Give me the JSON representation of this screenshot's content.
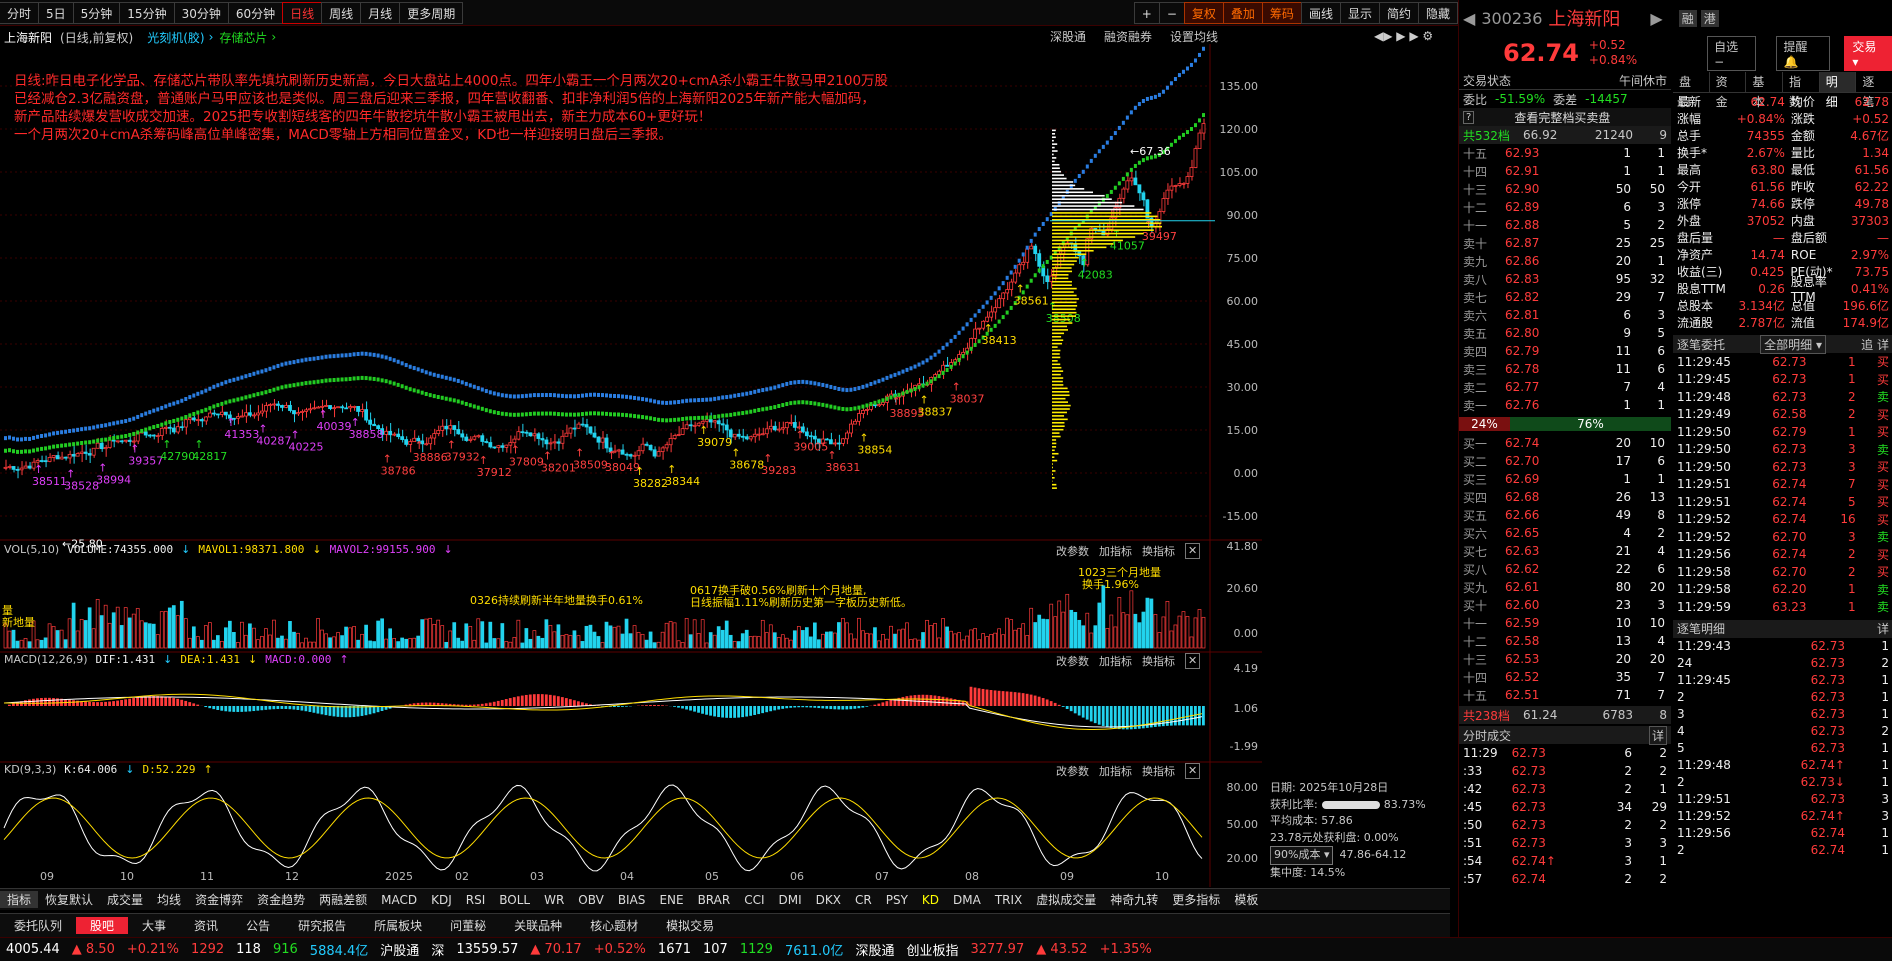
{
  "toolbar": {
    "periods": [
      "分时",
      "5日",
      "5分钟",
      "15分钟",
      "30分钟",
      "60分钟",
      "日线",
      "周线",
      "月线",
      "更多周期"
    ],
    "active": "日线",
    "tools": [
      "+",
      "−",
      "复权",
      "叠加",
      "筹码",
      "画线",
      "显示",
      "简约",
      "隐藏"
    ]
  },
  "chart_header": {
    "stock": "上海新阳",
    "mode": "(日线,前复权)",
    "concept1": "光刻机(胶)",
    "concept2": "存储芯片",
    "links": [
      "深股通",
      "融资融券",
      "设置均线"
    ]
  },
  "note": {
    "lines": [
      "日线:昨日电子化学品、存储芯片带队率先填坑刷新历史新高，今日大盘站上4000点。四年小霸王一个月两次20+cmA杀小霸王牛散马甲2100万股",
      "已经减仓2.3亿融资盘，普通账户马甲应该也是类似。周三盘后迎来三季报，四年营收翻番、扣非净利润5倍的上海新阳2025年新产能大幅加码，",
      "新产品陆续爆发营收成交加速。2025把专收割短线客的四年牛散挖坑牛散小霸王被甩出去，新主力成本60+更好玩！",
      "一个月两次20+cmA杀筹码峰高位单峰密集，MACD零轴上方相同位置金叉，KD也一样迎接明日盘后三季报。"
    ]
  },
  "price_axis": [
    "135.00",
    "120.00",
    "105.00",
    "90.00",
    "75.00",
    "60.00",
    "45.00",
    "30.00",
    "15.00",
    "0.00",
    "-15.00"
  ],
  "annotations": {
    "high": "67.36",
    "low": "25.80",
    "volumes": [
      {
        "t": "38511",
        "c": "mag"
      },
      {
        "t": "38528",
        "c": "mag"
      },
      {
        "t": "38994",
        "c": "mag"
      },
      {
        "t": "39357",
        "c": "mag"
      },
      {
        "t": "42790",
        "c": "grn"
      },
      {
        "t": "42817",
        "c": "grn"
      },
      {
        "t": "41353",
        "c": "mag"
      },
      {
        "t": "40287",
        "c": "mag"
      },
      {
        "t": "40225",
        "c": "mag"
      },
      {
        "t": "40039",
        "c": "mag"
      },
      {
        "t": "38858",
        "c": "mag"
      },
      {
        "t": "38786",
        "c": "red"
      },
      {
        "t": "38886",
        "c": "red"
      },
      {
        "t": "37932",
        "c": "red"
      },
      {
        "t": "37912",
        "c": "red"
      },
      {
        "t": "37809",
        "c": "red"
      },
      {
        "t": "38201",
        "c": "red"
      },
      {
        "t": "38509",
        "c": "red"
      },
      {
        "t": "38049",
        "c": "red"
      },
      {
        "t": "38282",
        "c": "yel"
      },
      {
        "t": "38344",
        "c": "yel"
      },
      {
        "t": "39079",
        "c": "yel"
      },
      {
        "t": "38678",
        "c": "yel"
      },
      {
        "t": "39283",
        "c": "red"
      },
      {
        "t": "39005",
        "c": "red"
      },
      {
        "t": "38631",
        "c": "red"
      },
      {
        "t": "38854",
        "c": "yel"
      },
      {
        "t": "38895",
        "c": "red"
      },
      {
        "t": "38837",
        "c": "yel"
      },
      {
        "t": "38037",
        "c": "red"
      },
      {
        "t": "38413",
        "c": "yel"
      },
      {
        "t": "38561",
        "c": "yel"
      },
      {
        "t": "38508",
        "c": "grn"
      },
      {
        "t": "42083",
        "c": "grn"
      },
      {
        "t": "41057",
        "c": "grn"
      },
      {
        "t": "39497",
        "c": "red"
      }
    ]
  },
  "vol": {
    "title": "VOL(5,10)",
    "volume": "VOLUME:74355.000",
    "m1": "MAVOL1:98371.800",
    "m2": "MAVOL2:99155.900",
    "axis": [
      "41.80",
      "20.60",
      "0.00"
    ],
    "notes": [
      "0326持续刷新半年地量换手0.61%",
      "0617换手破0.56%刷新十个月地量,",
      "日线振幅1.11%刷新历史第一字板历史新低。",
      "1023三个月地量",
      "换手1.96%",
      "量",
      "新地量"
    ],
    "btns": [
      "改参数",
      "加指标",
      "换指标"
    ]
  },
  "macd": {
    "title": "MACD(12,26,9)",
    "dif": "DIF:1.431",
    "dea": "DEA:1.431",
    "macd": "MACD:0.000",
    "axis": [
      "4.19",
      "1.06",
      "-1.99"
    ]
  },
  "kd": {
    "title": "KD(9,3,3)",
    "k": "K:64.006",
    "d": "D:52.229",
    "axis": [
      "80.00",
      "50.00",
      "20.00"
    ]
  },
  "xaxis": [
    "09",
    "10",
    "11",
    "12",
    "2025",
    "02",
    "03",
    "04",
    "05",
    "06",
    "07",
    "08",
    "09",
    "10"
  ],
  "chip": {
    "date_lbl": "日期:",
    "date": "2025年10月28日",
    "profit_lbl": "获利比率:",
    "profit": "83.73%",
    "avg_lbl": "平均成本:",
    "avg": "57.86",
    "line": "23.78元处获利盘: 0.00%",
    "cost_sel": "90%成本",
    "cost_range": "47.86-64.12",
    "conc_lbl": "集中度:",
    "conc": "14.5%"
  },
  "ind_tabs": [
    "指标",
    "恢复默认",
    "成交量",
    "均线",
    "资金博弈",
    "资金趋势",
    "两融差额",
    "MACD",
    "KDJ",
    "RSI",
    "BOLL",
    "WR",
    "OBV",
    "BIAS",
    "ENE",
    "BRAR",
    "CCI",
    "DMI",
    "DKX",
    "CR",
    "PSY",
    "KD",
    "DMA",
    "TRIX",
    "虚拟成交量",
    "神奇九转",
    "更多指标",
    "模板"
  ],
  "bottom_tabs": [
    "委托队列",
    "股吧",
    "大事",
    "资讯",
    "公告",
    "研究报告",
    "所属板块",
    "问董秘",
    "关联品种",
    "核心题材",
    "模拟交易"
  ],
  "quote": {
    "code": "300236",
    "name": "上海新阳",
    "price": "62.74",
    "chg": "+0.52",
    "pct": "+0.84%",
    "btns": [
      "自选",
      "提醒",
      "交易"
    ],
    "status_lbl": "交易状态",
    "status": "午间休市",
    "weibi_lbl": "委比",
    "weibi": "-51.59%",
    "weicha_lbl": "委差",
    "weicha": "-14457",
    "all_btn": "查看完整档买卖盘",
    "total_sell_lbl": "共532档",
    "total_sell_p": "66.92",
    "total_sell_v": "21240",
    "total_sell_n": "9",
    "total_buy_lbl": "共238档",
    "total_buy_p": "61.24",
    "total_buy_v": "6783",
    "total_buy_n": "8",
    "ratio_left": "24%",
    "ratio_right": "76%"
  },
  "sells": [
    [
      "十五",
      "62.93",
      "1",
      "1"
    ],
    [
      "十四",
      "62.91",
      "1",
      "1"
    ],
    [
      "十三",
      "62.90",
      "50",
      "50"
    ],
    [
      "十二",
      "62.89",
      "6",
      "3"
    ],
    [
      "十一",
      "62.88",
      "5",
      "2"
    ],
    [
      "卖十",
      "62.87",
      "25",
      "25"
    ],
    [
      "卖九",
      "62.86",
      "20",
      "1"
    ],
    [
      "卖八",
      "62.83",
      "95",
      "32"
    ],
    [
      "卖七",
      "62.82",
      "29",
      "7"
    ],
    [
      "卖六",
      "62.81",
      "6",
      "3"
    ],
    [
      "卖五",
      "62.80",
      "9",
      "5"
    ],
    [
      "卖四",
      "62.79",
      "11",
      "6"
    ],
    [
      "卖三",
      "62.78",
      "11",
      "6"
    ],
    [
      "卖二",
      "62.77",
      "7",
      "4"
    ],
    [
      "卖一",
      "62.76",
      "1",
      "1"
    ]
  ],
  "buys": [
    [
      "买一",
      "62.74",
      "20",
      "10"
    ],
    [
      "买二",
      "62.70",
      "17",
      "6"
    ],
    [
      "买三",
      "62.69",
      "1",
      "1"
    ],
    [
      "买四",
      "62.68",
      "26",
      "13"
    ],
    [
      "买五",
      "62.66",
      "49",
      "8"
    ],
    [
      "买六",
      "62.65",
      "4",
      "2"
    ],
    [
      "买七",
      "62.63",
      "21",
      "4"
    ],
    [
      "买八",
      "62.62",
      "22",
      "6"
    ],
    [
      "买九",
      "62.61",
      "80",
      "20"
    ],
    [
      "买十",
      "62.60",
      "23",
      "3"
    ],
    [
      "十一",
      "62.59",
      "10",
      "10"
    ],
    [
      "十二",
      "62.58",
      "13",
      "4"
    ],
    [
      "十三",
      "62.53",
      "20",
      "20"
    ],
    [
      "十四",
      "62.52",
      "35",
      "7"
    ],
    [
      "十五",
      "62.51",
      "71",
      "7"
    ]
  ],
  "fundtabs": [
    "盘口",
    "资金",
    "基本",
    "指数",
    "明细",
    "逐笔"
  ],
  "stats": [
    [
      "最新",
      "62.74",
      "均价",
      "62.78"
    ],
    [
      "涨幅",
      "+0.84%",
      "涨跌",
      "+0.52"
    ],
    [
      "总手",
      "74355",
      "金额",
      "4.67亿"
    ],
    [
      "换手*",
      "2.67%",
      "量比",
      "1.34"
    ],
    [
      "最高",
      "63.80",
      "最低",
      "61.56"
    ],
    [
      "今开",
      "61.56",
      "昨收",
      "62.22"
    ],
    [
      "涨停",
      "74.66",
      "跌停",
      "49.78"
    ],
    [
      "外盘",
      "37052",
      "内盘",
      "37303"
    ],
    [
      "盘后量",
      "—",
      "盘后额",
      "—"
    ],
    [
      "净资产",
      "14.74",
      "ROE",
      "2.97%"
    ],
    [
      "收益(三)",
      "0.425",
      "PE(动)*",
      "73.75"
    ],
    [
      "股息TTM",
      "0.26",
      "股息率TTM",
      "0.41%"
    ],
    [
      "总股本",
      "3.134亿",
      "总值",
      "196.6亿"
    ],
    [
      "流通股",
      "2.787亿",
      "流值",
      "174.9亿"
    ]
  ],
  "wt": {
    "title": "逐笔委托",
    "sel": "全部明细",
    "btns": [
      "追",
      "详"
    ],
    "rows": [
      [
        "11:29:45",
        "62.73",
        "1",
        "买"
      ],
      [
        "11:29:45",
        "62.73",
        "1",
        "买"
      ],
      [
        "11:29:48",
        "62.73",
        "2",
        "卖"
      ],
      [
        "11:29:49",
        "62.58",
        "2",
        "买"
      ],
      [
        "11:29:50",
        "62.79",
        "1",
        "买"
      ],
      [
        "11:29:50",
        "62.73",
        "3",
        "卖"
      ],
      [
        "11:29:50",
        "62.73",
        "3",
        "买"
      ],
      [
        "11:29:51",
        "62.74",
        "7",
        "买"
      ],
      [
        "11:29:51",
        "62.74",
        "5",
        "买"
      ],
      [
        "11:29:52",
        "62.74",
        "16",
        "买"
      ],
      [
        "11:29:52",
        "62.70",
        "3",
        "卖"
      ],
      [
        "11:29:56",
        "62.74",
        "2",
        "买"
      ],
      [
        "11:29:58",
        "62.70",
        "2",
        "买"
      ],
      [
        "11:29:58",
        "62.20",
        "1",
        "卖"
      ],
      [
        "11:29:59",
        "63.23",
        "1",
        "卖"
      ]
    ]
  },
  "zb": {
    "title": "逐笔明细",
    "btn": "详",
    "rows": [
      [
        "11:29:43",
        "62.73",
        "1"
      ],
      [
        "24",
        "62.73",
        "2"
      ],
      [
        "11:29:45",
        "62.73",
        "1"
      ],
      [
        "2",
        "62.73",
        "1"
      ],
      [
        "3",
        "62.73",
        "1"
      ],
      [
        "4",
        "62.73",
        "2"
      ],
      [
        "5",
        "62.73",
        "1"
      ],
      [
        "11:29:48",
        "62.74↑",
        "1"
      ],
      [
        "2",
        "62.73↓",
        "1"
      ],
      [
        "11:29:51",
        "62.73",
        "3"
      ],
      [
        "11:29:52",
        "62.74↑",
        "3"
      ],
      [
        "11:29:56",
        "62.74",
        "1"
      ],
      [
        "2",
        "62.74",
        "1"
      ]
    ]
  },
  "fs": {
    "title": "分时成交",
    "btn": "详",
    "rows": [
      [
        "11:29",
        "62.73",
        "6",
        "2"
      ],
      [
        ":33",
        "62.73",
        "2",
        "2"
      ],
      [
        ":42",
        "62.73",
        "2",
        "1"
      ],
      [
        ":45",
        "62.73",
        "34",
        "29"
      ],
      [
        ":50",
        "62.73",
        "2",
        "2"
      ],
      [
        ":51",
        "62.73",
        "3",
        "3"
      ],
      [
        ":54",
        "62.74↑",
        "3",
        "1"
      ],
      [
        ":57",
        "62.74",
        "2",
        "2"
      ]
    ]
  },
  "ticker": [
    "4005.44",
    "▲ 8.50",
    "+0.21%",
    "1292",
    "118",
    "916",
    "5884.4亿",
    "沪股通",
    "深",
    "13559.57",
    "▲ 70.17",
    "+0.52%",
    "1671",
    "107",
    "1129",
    "7611.0亿",
    "深股通",
    "创业板指",
    "3277.97",
    "▲ 43.52",
    "+1.35%"
  ]
}
